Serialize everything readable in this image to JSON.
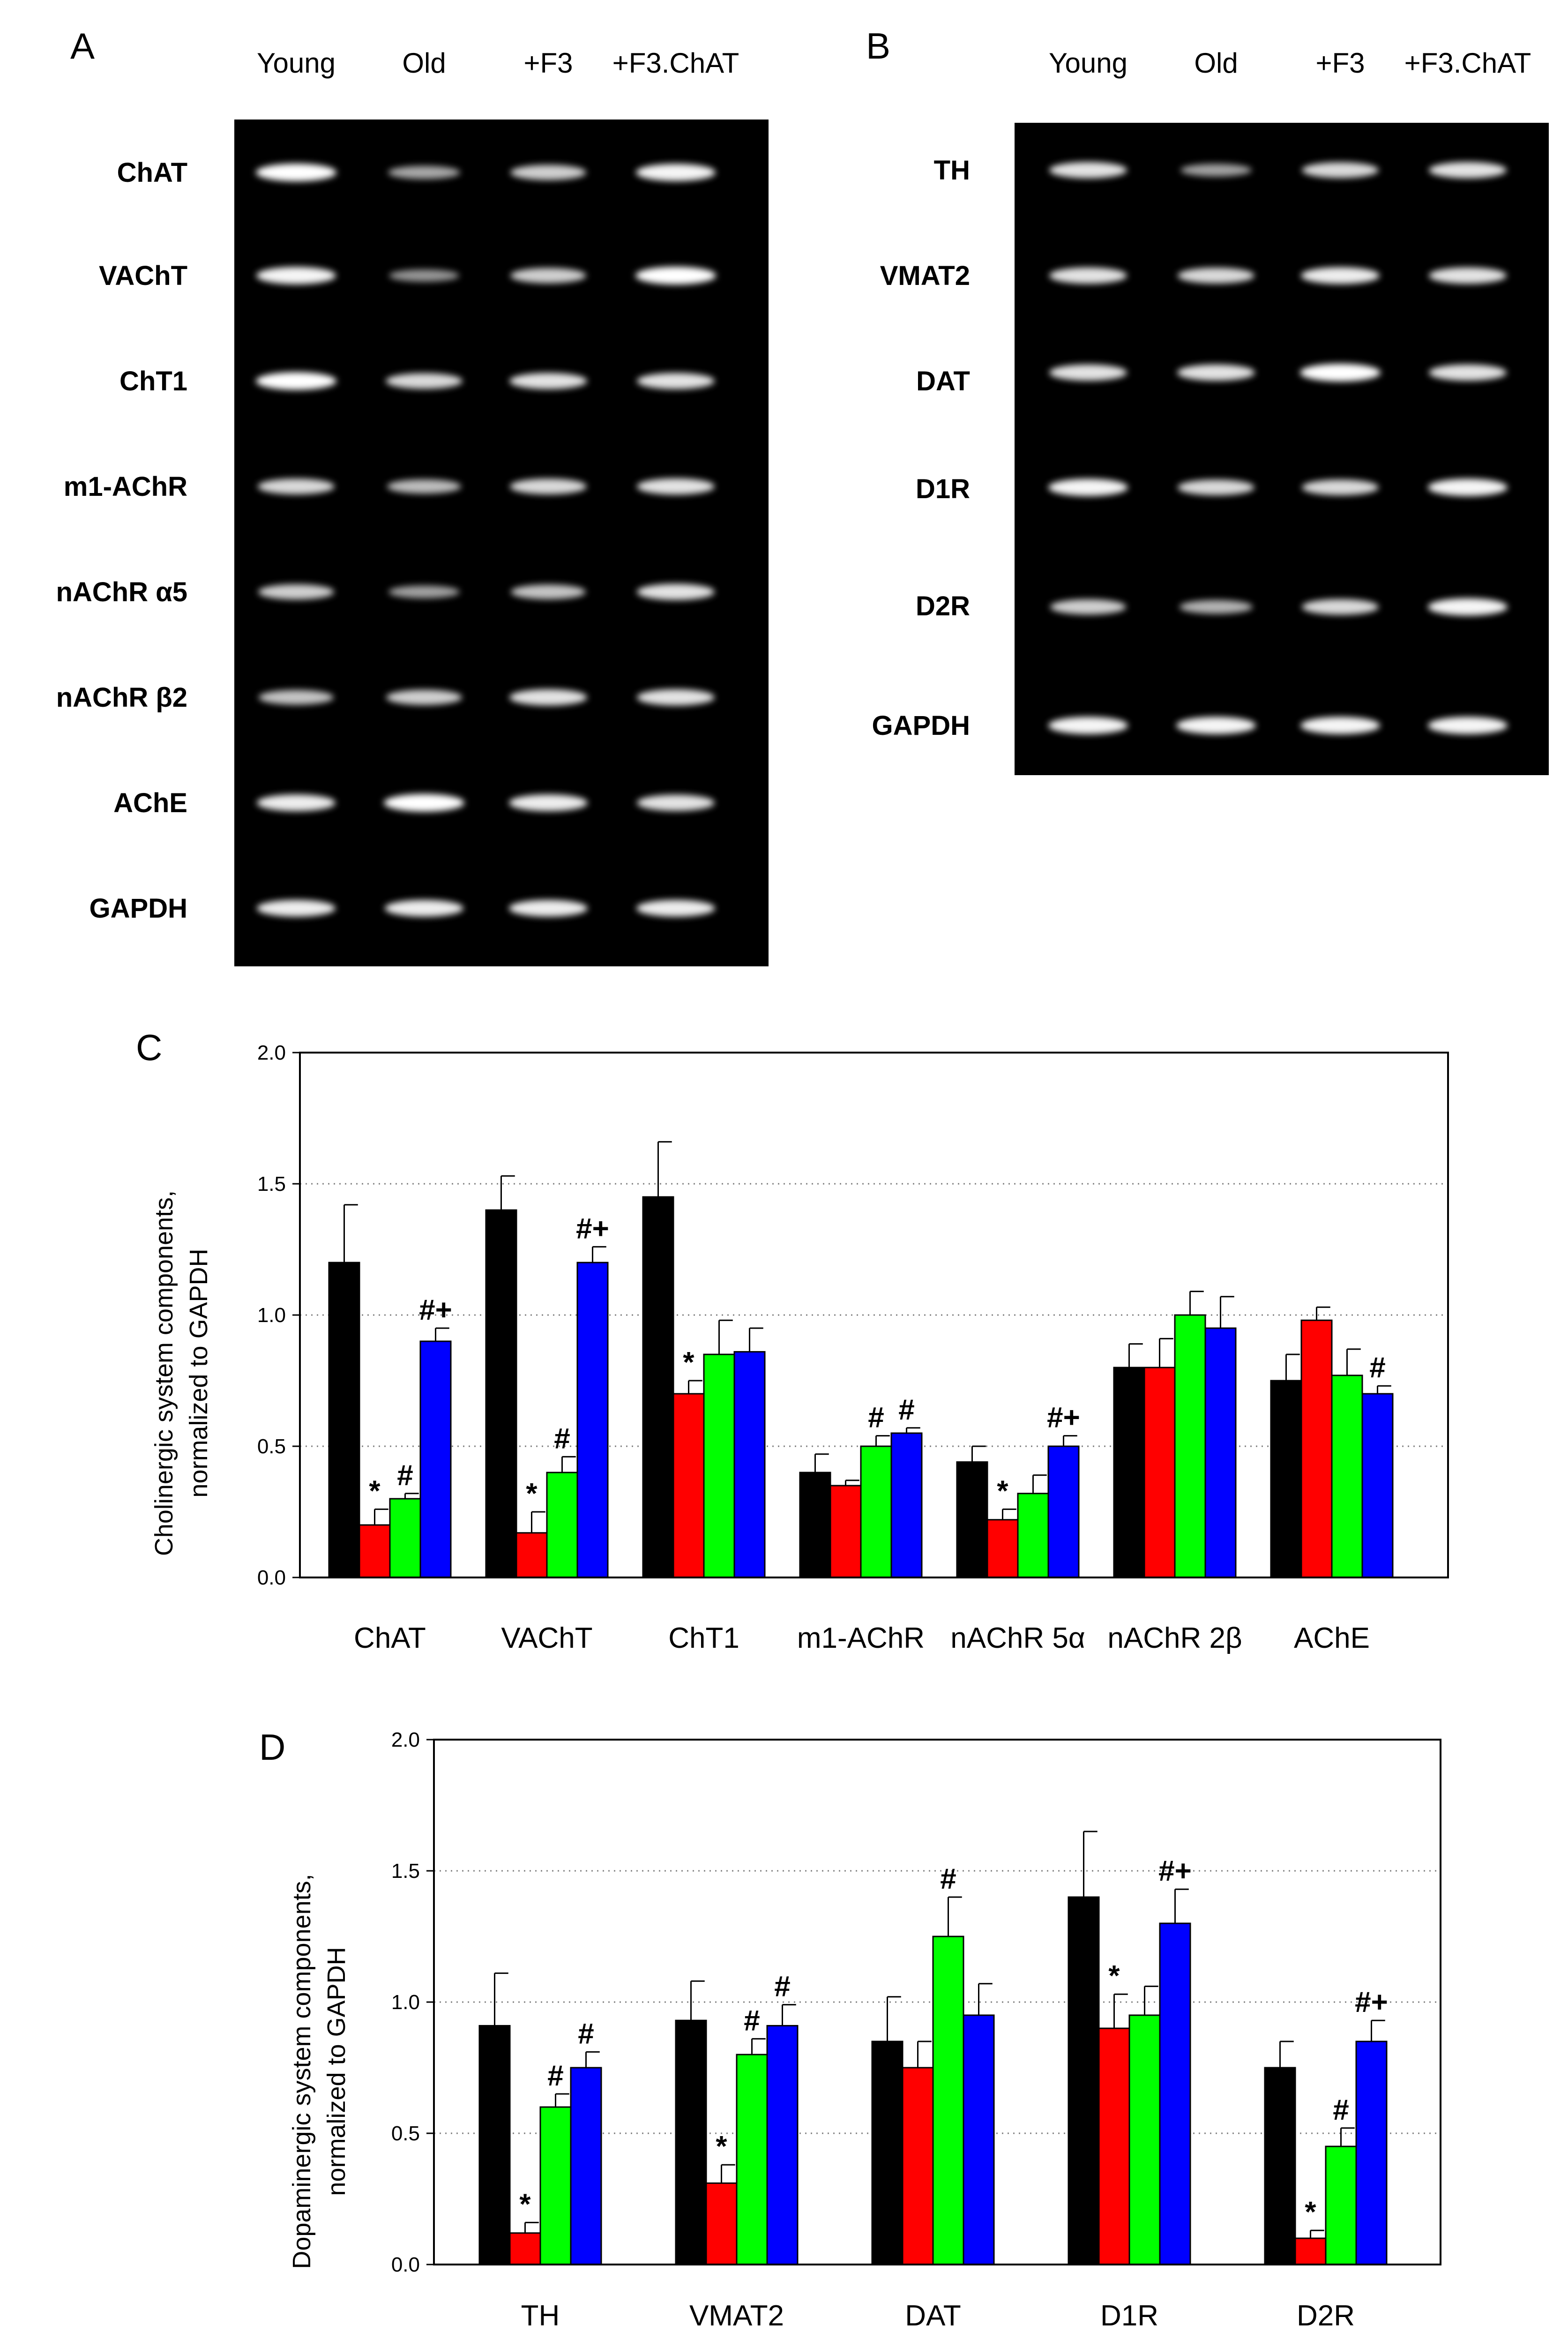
{
  "figure": {
    "panels": [
      "A",
      "B",
      "C",
      "D"
    ],
    "lanes": [
      "Young",
      "Old",
      "+F3",
      "+F3.ChAT"
    ],
    "gel_a": {
      "genes": [
        "ChAT",
        "VAChT",
        "ChT1",
        "m1-AChR",
        "nAChR α5",
        "nAChR β2",
        "AChE",
        "GAPDH"
      ],
      "band_intensity": [
        [
          1.0,
          0.55,
          0.75,
          0.95
        ],
        [
          0.95,
          0.45,
          0.75,
          1.0
        ],
        [
          1.0,
          0.8,
          0.85,
          0.85
        ],
        [
          0.8,
          0.65,
          0.8,
          0.85
        ],
        [
          0.75,
          0.5,
          0.7,
          0.85
        ],
        [
          0.7,
          0.75,
          0.85,
          0.85
        ],
        [
          0.9,
          1.0,
          0.9,
          0.85
        ],
        [
          0.9,
          0.9,
          0.9,
          0.9
        ]
      ]
    },
    "gel_b": {
      "genes": [
        "TH",
        "VMAT2",
        "DAT",
        "D1R",
        "D2R",
        "GAPDH"
      ],
      "band_intensity": [
        [
          0.85,
          0.5,
          0.8,
          0.85
        ],
        [
          0.85,
          0.8,
          0.9,
          0.85
        ],
        [
          0.85,
          0.85,
          1.0,
          0.85
        ],
        [
          0.95,
          0.8,
          0.8,
          0.95
        ],
        [
          0.75,
          0.6,
          0.8,
          0.95
        ],
        [
          0.95,
          0.95,
          0.95,
          0.95
        ]
      ]
    }
  },
  "colors": {
    "series": [
      "#000000",
      "#ff0000",
      "#00ff00",
      "#0000ff"
    ],
    "gel_bg": "#000000",
    "band": "#ffffff",
    "grid": "#808080"
  },
  "chart_data": [
    {
      "panel": "C",
      "type": "bar",
      "ylabel_line1": "Cholinergic system components,",
      "ylabel_line2": "normalized to GAPDH",
      "ylim": [
        0,
        2.0
      ],
      "yticks": [
        "0.0",
        "0.5",
        "1.0",
        "1.5",
        "2.0"
      ],
      "grid": "horizontal dotted",
      "categories": [
        "ChAT",
        "VAChT",
        "ChT1",
        "m1-AChR",
        "nAChR 5α",
        "nAChR 2β",
        "AChE"
      ],
      "series": [
        {
          "name": "Young",
          "values": [
            1.2,
            1.4,
            1.45,
            0.4,
            0.44,
            0.8,
            0.75
          ],
          "errors": [
            0.22,
            0.13,
            0.21,
            0.07,
            0.06,
            0.09,
            0.1
          ]
        },
        {
          "name": "Old",
          "values": [
            0.2,
            0.17,
            0.7,
            0.35,
            0.22,
            0.8,
            0.98
          ],
          "errors": [
            0.06,
            0.08,
            0.05,
            0.02,
            0.04,
            0.11,
            0.05
          ]
        },
        {
          "name": "+F3",
          "values": [
            0.3,
            0.4,
            0.85,
            0.5,
            0.32,
            1.0,
            0.77
          ],
          "errors": [
            0.02,
            0.06,
            0.13,
            0.04,
            0.07,
            0.09,
            0.1
          ]
        },
        {
          "name": "+F3.ChAT",
          "values": [
            0.9,
            1.2,
            0.86,
            0.55,
            0.5,
            0.95,
            0.7
          ],
          "errors": [
            0.05,
            0.06,
            0.09,
            0.02,
            0.04,
            0.12,
            0.03
          ]
        }
      ],
      "annotations": [
        {
          "category": 0,
          "series": 1,
          "text": "*"
        },
        {
          "category": 0,
          "series": 2,
          "text": "#"
        },
        {
          "category": 0,
          "series": 3,
          "text": "#+"
        },
        {
          "category": 1,
          "series": 1,
          "text": "*"
        },
        {
          "category": 1,
          "series": 2,
          "text": "#"
        },
        {
          "category": 1,
          "series": 3,
          "text": "#+"
        },
        {
          "category": 2,
          "series": 1,
          "text": "*"
        },
        {
          "category": 3,
          "series": 2,
          "text": "#"
        },
        {
          "category": 3,
          "series": 3,
          "text": "#"
        },
        {
          "category": 4,
          "series": 1,
          "text": "*"
        },
        {
          "category": 4,
          "series": 3,
          "text": "#+"
        },
        {
          "category": 6,
          "series": 3,
          "text": "#"
        }
      ]
    },
    {
      "panel": "D",
      "type": "bar",
      "ylabel_line1": "Dopaminergic system components,",
      "ylabel_line2": "normalized to GAPDH",
      "ylim": [
        0,
        2.0
      ],
      "yticks": [
        "0.0",
        "0.5",
        "1.0",
        "1.5",
        "2.0"
      ],
      "grid": "horizontal dotted",
      "categories": [
        "TH",
        "VMAT2",
        "DAT",
        "D1R",
        "D2R"
      ],
      "series": [
        {
          "name": "Young",
          "values": [
            0.91,
            0.93,
            0.85,
            1.4,
            0.75
          ],
          "errors": [
            0.2,
            0.15,
            0.17,
            0.25,
            0.1
          ]
        },
        {
          "name": "Old",
          "values": [
            0.12,
            0.31,
            0.75,
            0.9,
            0.1
          ],
          "errors": [
            0.04,
            0.07,
            0.1,
            0.13,
            0.03
          ]
        },
        {
          "name": "+F3",
          "values": [
            0.6,
            0.8,
            1.25,
            0.95,
            0.45
          ],
          "errors": [
            0.05,
            0.06,
            0.15,
            0.11,
            0.07
          ]
        },
        {
          "name": "+F3.ChAT",
          "values": [
            0.75,
            0.91,
            0.95,
            1.3,
            0.85
          ],
          "errors": [
            0.06,
            0.08,
            0.12,
            0.13,
            0.08
          ]
        }
      ],
      "annotations": [
        {
          "category": 0,
          "series": 1,
          "text": "*"
        },
        {
          "category": 0,
          "series": 2,
          "text": "#"
        },
        {
          "category": 0,
          "series": 3,
          "text": "#"
        },
        {
          "category": 1,
          "series": 1,
          "text": "*"
        },
        {
          "category": 1,
          "series": 2,
          "text": "#"
        },
        {
          "category": 1,
          "series": 3,
          "text": "#"
        },
        {
          "category": 2,
          "series": 2,
          "text": "#"
        },
        {
          "category": 3,
          "series": 1,
          "text": "*"
        },
        {
          "category": 3,
          "series": 3,
          "text": "#+"
        },
        {
          "category": 4,
          "series": 1,
          "text": "*"
        },
        {
          "category": 4,
          "series": 2,
          "text": "#"
        },
        {
          "category": 4,
          "series": 3,
          "text": "#+"
        }
      ]
    }
  ]
}
